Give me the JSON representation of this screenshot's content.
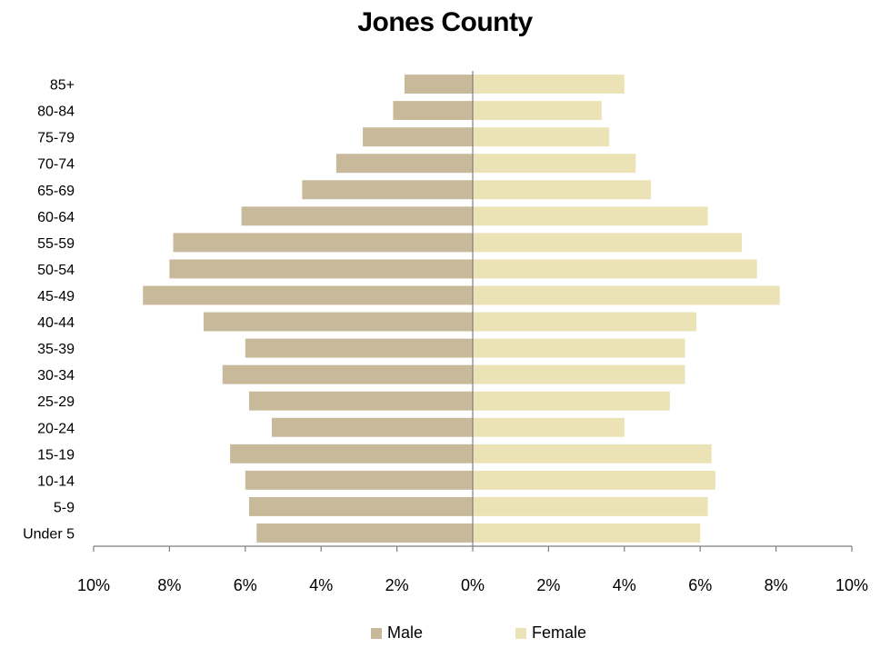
{
  "chart_data": {
    "type": "bar",
    "orientation": "horizontal-pyramid",
    "title": "Jones County",
    "categories": [
      "Under 5",
      "5-9",
      "10-14",
      "15-19",
      "20-24",
      "25-29",
      "30-34",
      "35-39",
      "40-44",
      "45-49",
      "50-54",
      "55-59",
      "60-64",
      "65-69",
      "70-74",
      "75-79",
      "80-84",
      "85+"
    ],
    "series": [
      {
        "name": "Male",
        "color": "#c8b99a",
        "values": [
          5.7,
          5.9,
          6.0,
          6.4,
          5.3,
          5.9,
          6.6,
          6.0,
          7.1,
          8.7,
          8.0,
          7.9,
          6.1,
          4.5,
          3.6,
          2.9,
          2.1,
          1.8
        ]
      },
      {
        "name": "Female",
        "color": "#ebe3b6",
        "values": [
          6.0,
          6.2,
          6.4,
          6.3,
          4.0,
          5.2,
          5.6,
          5.6,
          5.9,
          8.1,
          7.5,
          7.1,
          6.2,
          4.7,
          4.3,
          3.6,
          3.4,
          4.0
        ]
      }
    ],
    "x_ticks": [
      "10%",
      "8%",
      "6%",
      "4%",
      "2%",
      "0%",
      "2%",
      "4%",
      "6%",
      "8%",
      "10%"
    ],
    "xlim": [
      -10,
      10
    ],
    "legend_position": "bottom",
    "grid": false
  }
}
